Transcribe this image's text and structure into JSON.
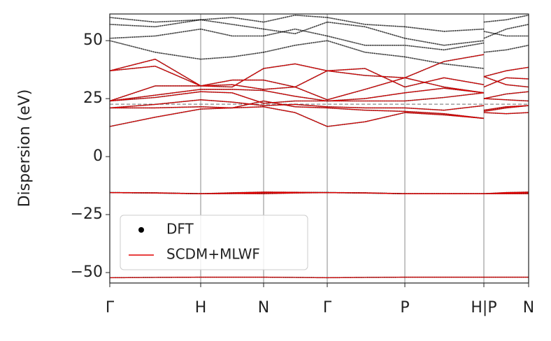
{
  "chart_data": {
    "type": "band-structure",
    "ylabel": "Dispersion (eV)",
    "x": [
      0,
      0.65,
      1.3,
      1.75,
      2.2,
      2.65,
      3.11,
      3.65,
      4.22,
      4.78,
      5.35,
      5.35,
      5.35,
      5.67,
      5.99
    ],
    "xlim": [
      0,
      5.99
    ],
    "xticks": [
      {
        "value": 0,
        "label": "Γ"
      },
      {
        "value": 1.3,
        "label": "H"
      },
      {
        "value": 2.2,
        "label": "N"
      },
      {
        "value": 3.11,
        "label": "Γ"
      },
      {
        "value": 4.22,
        "label": "P"
      },
      {
        "value": 5.35,
        "label": "H|P"
      },
      {
        "value": 5.99,
        "label": "N"
      }
    ],
    "ylim": [
      -54.5,
      61.5
    ],
    "yticks": [
      {
        "value": -50,
        "label": "−50"
      },
      {
        "value": -25,
        "label": "−25"
      },
      0,
      25,
      50
    ],
    "hline": 22.6,
    "legend": "lower left",
    "xgrid": true,
    "series": [
      {
        "name": "DFT",
        "color": "#000000",
        "bands": [
          [
            -52.2,
            -52.1,
            -52,
            -52,
            -52,
            -52.1,
            -52.2,
            -52.1,
            -52,
            -52,
            -52,
            null,
            -52,
            -52,
            -52
          ],
          [
            -15.5,
            -15.7,
            -16,
            -15.9,
            -16,
            -15.7,
            -15.5,
            -15.7,
            -16,
            -16,
            -16,
            null,
            -16,
            -16,
            -16
          ],
          [
            -15.5,
            -15.7,
            -16,
            -15.9,
            -15.5,
            -15.5,
            -15.5,
            -15.7,
            -16,
            -16,
            -16,
            null,
            -16,
            -15.8,
            -15.5
          ],
          [
            -15.5,
            -15.6,
            -16,
            -15.6,
            -15.3,
            -15.4,
            -15.5,
            -15.6,
            -16,
            -16,
            -16,
            null,
            -16,
            -15.5,
            -15.3
          ],
          [
            13,
            17,
            20.5,
            21,
            21.5,
            19,
            13,
            15,
            19,
            18,
            16.5,
            null,
            19,
            18.5,
            19
          ],
          [
            21,
            21,
            21.5,
            21,
            24,
            21.5,
            21,
            20,
            19.5,
            18.5,
            16.5,
            null,
            19.5,
            21,
            22
          ],
          [
            21,
            22.5,
            24.5,
            23.5,
            22,
            22.5,
            21.5,
            21,
            21,
            20,
            22,
            null,
            20,
            21.5,
            22
          ],
          [
            24,
            25.5,
            28,
            27.5,
            23,
            24,
            24,
            24,
            24,
            25.5,
            27.5,
            null,
            25,
            24.5,
            24
          ],
          [
            24,
            26.5,
            29,
            29,
            28.5,
            26,
            24,
            25,
            27.5,
            29.5,
            27.5,
            null,
            25,
            27,
            28
          ],
          [
            37,
            39,
            30.5,
            33,
            33,
            30,
            37,
            35,
            34,
            30,
            27.5,
            null,
            34.5,
            31,
            30
          ],
          [
            37,
            42,
            30.5,
            30,
            38,
            40,
            37,
            38,
            30,
            34,
            31,
            null,
            34.5,
            37,
            38.5
          ],
          [
            24,
            30.5,
            30.5,
            31,
            29,
            30,
            24.5,
            29,
            34,
            41,
            44,
            null,
            30,
            34,
            33.5
          ],
          [
            50,
            45,
            42,
            43,
            45,
            48,
            50,
            45,
            43,
            40,
            38,
            null,
            45,
            46,
            48
          ],
          [
            51,
            52,
            55,
            52,
            52,
            55,
            52,
            48,
            48,
            46,
            49,
            null,
            51,
            55,
            57
          ],
          [
            57,
            56,
            59,
            57,
            55,
            53,
            58,
            56,
            51,
            48,
            50,
            null,
            54,
            52,
            52
          ],
          [
            60,
            58,
            59,
            60,
            58,
            61,
            60,
            57,
            56,
            54,
            55,
            null,
            58,
            59,
            61
          ]
        ]
      },
      {
        "name": "SCDM+MLWF",
        "color": "#e00000",
        "bands": [
          [
            -52.2,
            -52.1,
            -52,
            -52,
            -52,
            -52.1,
            -52.2,
            -52.1,
            -52,
            -52,
            -52,
            null,
            -52,
            -52,
            -52
          ],
          [
            -15.5,
            -15.7,
            -16,
            -15.9,
            -16,
            -15.7,
            -15.5,
            -15.7,
            -16,
            -16,
            -16,
            null,
            -16,
            -16,
            -16
          ],
          [
            -15.5,
            -15.7,
            -16,
            -15.9,
            -15.5,
            -15.5,
            -15.5,
            -15.7,
            -16,
            -16,
            -16,
            null,
            -16,
            -15.8,
            -15.5
          ],
          [
            -15.5,
            -15.6,
            -16,
            -15.6,
            -15.3,
            -15.4,
            -15.5,
            -15.6,
            -16,
            -16,
            -16,
            null,
            -16,
            -15.5,
            -15.3
          ],
          [
            13,
            17,
            20.5,
            21,
            21.5,
            19,
            13,
            15,
            19,
            18,
            16.5,
            null,
            19,
            18.5,
            19
          ],
          [
            21,
            21,
            21.5,
            21,
            24,
            21.5,
            21,
            20,
            19.5,
            18.5,
            16.5,
            null,
            19.5,
            21,
            22
          ],
          [
            21,
            22.5,
            24.5,
            23.5,
            22,
            22.5,
            21.5,
            21,
            21,
            20,
            22,
            null,
            20,
            21.5,
            22
          ],
          [
            24,
            25.5,
            28,
            27.5,
            23,
            24,
            24,
            24,
            24,
            25.5,
            27.5,
            null,
            25,
            24.5,
            24
          ],
          [
            24,
            26.5,
            29,
            29,
            28.5,
            26,
            24,
            25,
            27.5,
            29.5,
            27.5,
            null,
            25,
            27,
            28
          ],
          [
            37,
            39,
            30.5,
            33,
            33,
            30,
            37,
            35,
            34,
            30,
            27.5,
            null,
            34.5,
            31,
            30
          ],
          [
            37,
            42,
            30.5,
            30,
            38,
            40,
            37,
            38,
            30,
            34,
            31,
            null,
            34.5,
            37,
            38.5
          ],
          [
            24,
            30.5,
            30.5,
            31,
            29,
            30,
            24.5,
            29,
            34,
            41,
            44,
            null,
            30,
            34,
            33.5
          ]
        ]
      }
    ]
  }
}
